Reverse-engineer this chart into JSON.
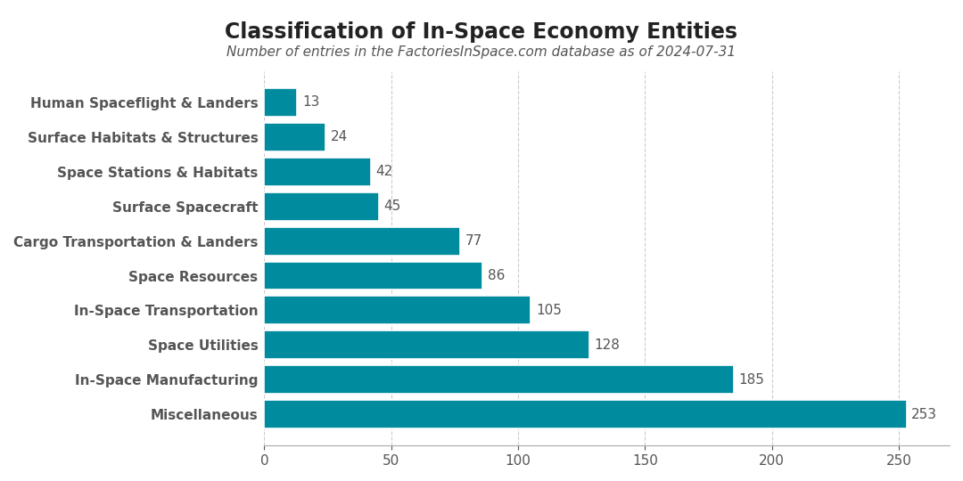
{
  "title": "Classification of In-Space Economy Entities",
  "subtitle": "Number of entries in the FactoriesInSpace.com database as of 2024-07-31",
  "categories": [
    "Miscellaneous",
    "In-Space Manufacturing",
    "Space Utilities",
    "In-Space Transportation",
    "Space Resources",
    "Cargo Transportation & Landers",
    "Surface Spacecraft",
    "Space Stations & Habitats",
    "Surface Habitats & Structures",
    "Human Spaceflight & Landers"
  ],
  "values": [
    253,
    185,
    128,
    105,
    86,
    77,
    45,
    42,
    24,
    13
  ],
  "bar_color": "#008B9E",
  "label_color": "#555555",
  "title_color": "#222222",
  "subtitle_color": "#555555",
  "background_color": "#ffffff",
  "grid_color": "#cccccc",
  "xlim": [
    0,
    270
  ],
  "xticks": [
    0,
    50,
    100,
    150,
    200,
    250
  ],
  "title_fontsize": 17,
  "subtitle_fontsize": 11,
  "label_fontsize": 11,
  "tick_fontsize": 11,
  "value_fontsize": 11
}
